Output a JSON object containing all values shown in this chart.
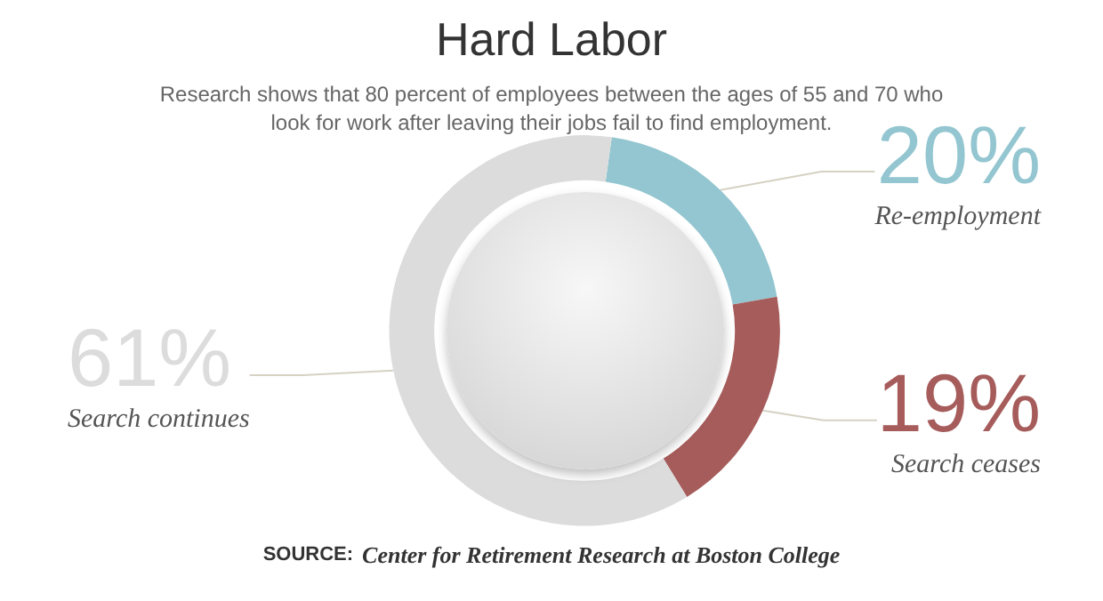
{
  "chart_data": {
    "type": "donut",
    "title": "Hard Labor",
    "subtitle": "Research shows that 80 percent of employees between the ages of 55 and 70 who\nlook for work after leaving their jobs fail to find employment.",
    "categories": [
      "Re-employment",
      "Search ceases",
      "Search continues"
    ],
    "values": [
      20,
      19,
      61
    ],
    "colors": [
      "#93c6d0",
      "#a65c5b",
      "#dcdcdc"
    ],
    "value_labels": [
      "20%",
      "19%",
      "61%"
    ],
    "annotations": [
      "SOURCE: Center for Retirement Research at Boston College"
    ],
    "legend": false
  }
}
